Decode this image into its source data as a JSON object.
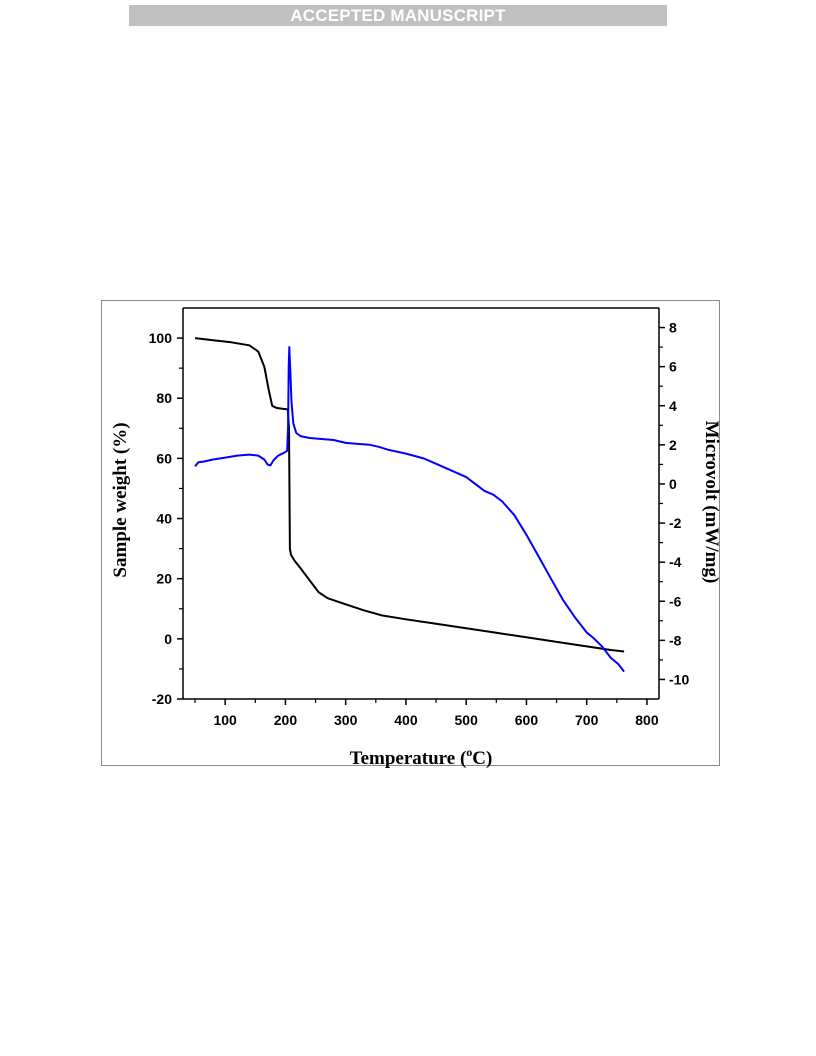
{
  "header": {
    "banner": "ACCEPTED MANUSCRIPT"
  },
  "chart_data": {
    "type": "line",
    "title": "",
    "xlabel": "Temperature (",
    "xlabel_sup": "o",
    "xlabel_unit": "C)",
    "ylabel": "Sample weight (%)",
    "ylabel_right": "Microvolt (mW/mg)",
    "xlim": [
      30,
      820
    ],
    "ylim": [
      -20,
      110
    ],
    "ylim_right": [
      -11,
      9
    ],
    "x_ticks": [
      100,
      200,
      300,
      400,
      500,
      600,
      700,
      800
    ],
    "y_ticks": [
      -20,
      0,
      20,
      40,
      60,
      80,
      100
    ],
    "y_ticks_right": [
      -10,
      -8,
      -6,
      -4,
      -2,
      0,
      2,
      4,
      6,
      8
    ],
    "grid": false,
    "series": [
      {
        "color": "#000000",
        "axis": "left",
        "points": [
          [
            50,
            100
          ],
          [
            80,
            99.3
          ],
          [
            110,
            98.6
          ],
          [
            140,
            97.6
          ],
          [
            155,
            95.5
          ],
          [
            165,
            90.5
          ],
          [
            172,
            83
          ],
          [
            178,
            77.5
          ],
          [
            185,
            76.8
          ],
          [
            195,
            76.5
          ],
          [
            204,
            76.3
          ],
          [
            206,
            70
          ],
          [
            207.5,
            30
          ],
          [
            209,
            28
          ],
          [
            215,
            26
          ],
          [
            225,
            23.5
          ],
          [
            240,
            19.5
          ],
          [
            255,
            15.5
          ],
          [
            270,
            13.5
          ],
          [
            300,
            11.5
          ],
          [
            330,
            9.5
          ],
          [
            360,
            7.8
          ],
          [
            400,
            6.5
          ],
          [
            450,
            5
          ],
          [
            500,
            3.5
          ],
          [
            550,
            2
          ],
          [
            600,
            0.5
          ],
          [
            650,
            -1
          ],
          [
            700,
            -2.5
          ],
          [
            740,
            -3.7
          ],
          [
            762,
            -4.2
          ]
        ]
      },
      {
        "color": "#0000ff",
        "axis": "right",
        "points": [
          [
            50,
            0.9
          ],
          [
            55,
            1.1
          ],
          [
            65,
            1.15
          ],
          [
            80,
            1.25
          ],
          [
            100,
            1.35
          ],
          [
            120,
            1.45
          ],
          [
            140,
            1.5
          ],
          [
            155,
            1.45
          ],
          [
            165,
            1.25
          ],
          [
            170,
            1.0
          ],
          [
            175,
            0.95
          ],
          [
            180,
            1.2
          ],
          [
            188,
            1.45
          ],
          [
            198,
            1.6
          ],
          [
            203,
            1.7
          ],
          [
            204.5,
            3.0
          ],
          [
            205.5,
            6.0
          ],
          [
            206.5,
            7.0
          ],
          [
            208,
            5.8
          ],
          [
            210,
            4.2
          ],
          [
            213,
            3.1
          ],
          [
            218,
            2.6
          ],
          [
            225,
            2.45
          ],
          [
            240,
            2.35
          ],
          [
            260,
            2.3
          ],
          [
            280,
            2.25
          ],
          [
            300,
            2.1
          ],
          [
            320,
            2.05
          ],
          [
            340,
            2.0
          ],
          [
            355,
            1.9
          ],
          [
            370,
            1.75
          ],
          [
            400,
            1.55
          ],
          [
            430,
            1.3
          ],
          [
            460,
            0.9
          ],
          [
            500,
            0.35
          ],
          [
            530,
            -0.35
          ],
          [
            545,
            -0.55
          ],
          [
            560,
            -0.9
          ],
          [
            580,
            -1.6
          ],
          [
            600,
            -2.6
          ],
          [
            620,
            -3.7
          ],
          [
            640,
            -4.8
          ],
          [
            660,
            -5.9
          ],
          [
            680,
            -6.8
          ],
          [
            690,
            -7.2
          ],
          [
            700,
            -7.6
          ],
          [
            712,
            -7.9
          ],
          [
            725,
            -8.3
          ],
          [
            740,
            -8.9
          ],
          [
            752,
            -9.2
          ],
          [
            762,
            -9.6
          ]
        ]
      }
    ]
  }
}
